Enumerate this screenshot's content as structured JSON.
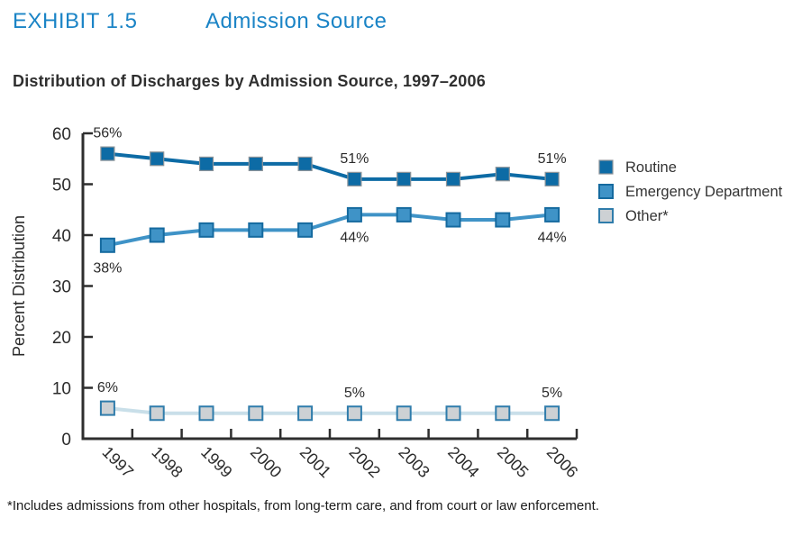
{
  "header": {
    "exhibit_label": "EXHIBIT 1.5",
    "title": "Admission Source",
    "color": "#1b84c6"
  },
  "footnote": "*Includes admissions from other hospitals, from long-term care, and from court or law enforcement.",
  "chart_data": {
    "type": "line",
    "title": "Distribution of Discharges by Admission Source, 1997–2006",
    "categories": [
      "1997",
      "1998",
      "1999",
      "2000",
      "2001",
      "2002",
      "2003",
      "2004",
      "2005",
      "2006"
    ],
    "xlabel": "",
    "ylabel": "Percent Distribution",
    "ylim": [
      0,
      60
    ],
    "yticks": [
      0,
      10,
      20,
      30,
      40,
      50,
      60
    ],
    "grid": false,
    "legend_position": "right",
    "axis_color": "#2e2e2e",
    "text_color": "#2b2b2b",
    "series": [
      {
        "name": "Routine",
        "values": [
          56,
          55,
          54,
          54,
          54,
          51,
          51,
          51,
          52,
          51
        ],
        "color": "#0d6ba5",
        "marker_fill": "#0d6ba5",
        "marker_stroke": "#8e9499",
        "marker_stroke_width": 1.2,
        "point_labels": [
          {
            "index": 0,
            "text": "56%",
            "position": "above"
          },
          {
            "index": 5,
            "text": "51%",
            "position": "above"
          },
          {
            "index": 9,
            "text": "51%",
            "position": "above"
          }
        ]
      },
      {
        "name": "Emergency Department",
        "values": [
          38,
          40,
          41,
          41,
          41,
          44,
          44,
          43,
          43,
          44
        ],
        "color": "#3f93c7",
        "marker_fill": "#3f93c7",
        "marker_stroke": "#156a9f",
        "marker_stroke_width": 2,
        "point_labels": [
          {
            "index": 0,
            "text": "38%",
            "position": "below"
          },
          {
            "index": 5,
            "text": "44%",
            "position": "below"
          },
          {
            "index": 9,
            "text": "44%",
            "position": "below"
          }
        ]
      },
      {
        "name": "Other*",
        "values": [
          6,
          5,
          5,
          5,
          5,
          5,
          5,
          5,
          5,
          5
        ],
        "color": "#c9dfe9",
        "marker_fill": "#cdd1d4",
        "marker_stroke": "#2f7cab",
        "marker_stroke_width": 2,
        "point_labels": [
          {
            "index": 0,
            "text": "6%",
            "position": "above"
          },
          {
            "index": 5,
            "text": "5%",
            "position": "above"
          },
          {
            "index": 9,
            "text": "5%",
            "position": "above"
          }
        ]
      }
    ]
  }
}
